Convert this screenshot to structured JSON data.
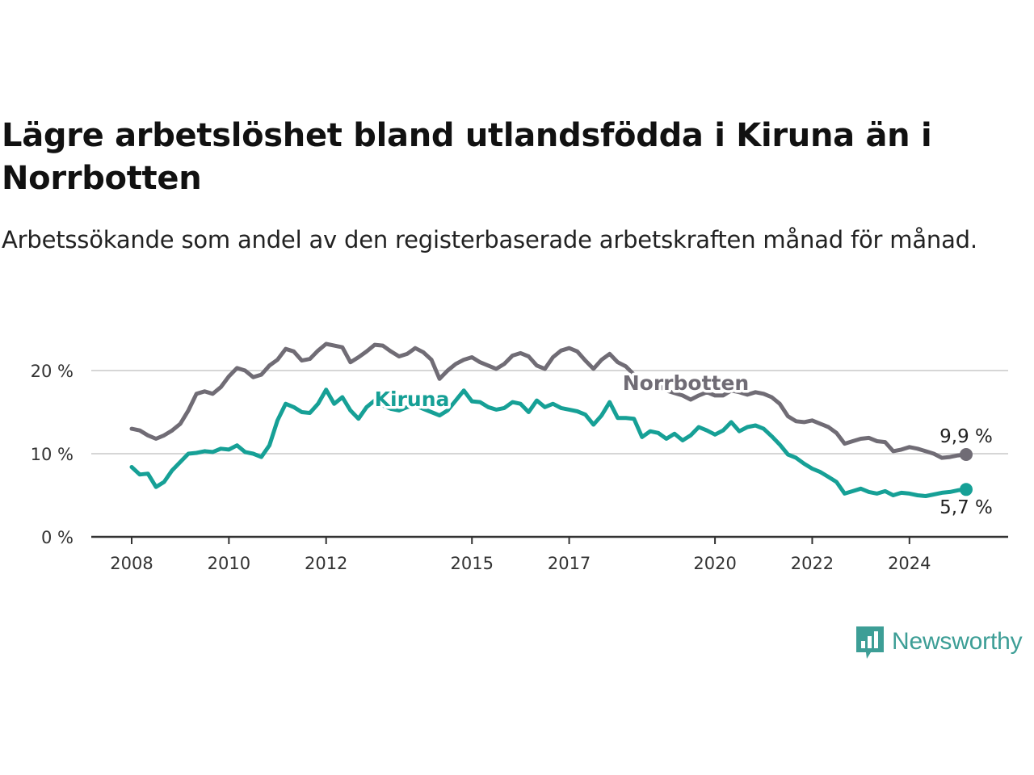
{
  "title": "Lägre arbetslöshet bland utlandsfödda i Kiruna än i Norrbotten",
  "subtitle": "Arbetssökande som andel av den registerbaserade arbetskraften månad för månad.",
  "brand": {
    "name": "Newsworthy",
    "icon": "bar-chart-speech-icon",
    "color": "#3d9e96"
  },
  "chart_data": {
    "type": "line",
    "title": "Lägre arbetslöshet bland utlandsfödda i Kiruna än i Norrbotten",
    "subtitle": "Arbetssökande som andel av den registerbaserade arbetskraften månad för månad.",
    "xlabel": "",
    "ylabel": "",
    "x_ticks": [
      "2008",
      "2010",
      "2012",
      "2015",
      "2017",
      "2020",
      "2022",
      "2024"
    ],
    "y_ticks": [
      "0 %",
      "10 %",
      "20 %"
    ],
    "ylim": [
      0,
      25
    ],
    "xlim": [
      "2008-01",
      "2025-03"
    ],
    "grid": true,
    "series": [
      {
        "name": "Norrbotten",
        "color": "#706c75",
        "end_label": "9,9 %",
        "points": [
          [
            "2008-01",
            13.0
          ],
          [
            "2008-03",
            12.8
          ],
          [
            "2008-05",
            12.2
          ],
          [
            "2008-07",
            11.8
          ],
          [
            "2008-09",
            12.2
          ],
          [
            "2008-11",
            12.8
          ],
          [
            "2009-01",
            13.6
          ],
          [
            "2009-03",
            15.2
          ],
          [
            "2009-05",
            17.2
          ],
          [
            "2009-07",
            17.5
          ],
          [
            "2009-09",
            17.2
          ],
          [
            "2009-11",
            18.0
          ],
          [
            "2010-01",
            19.3
          ],
          [
            "2010-03",
            20.3
          ],
          [
            "2010-05",
            20.0
          ],
          [
            "2010-07",
            19.2
          ],
          [
            "2010-09",
            19.5
          ],
          [
            "2010-11",
            20.6
          ],
          [
            "2011-01",
            21.3
          ],
          [
            "2011-03",
            22.6
          ],
          [
            "2011-05",
            22.3
          ],
          [
            "2011-07",
            21.2
          ],
          [
            "2011-09",
            21.4
          ],
          [
            "2011-11",
            22.4
          ],
          [
            "2012-01",
            23.2
          ],
          [
            "2012-03",
            23.0
          ],
          [
            "2012-05",
            22.8
          ],
          [
            "2012-07",
            21.0
          ],
          [
            "2012-09",
            21.6
          ],
          [
            "2012-11",
            22.3
          ],
          [
            "2013-01",
            23.1
          ],
          [
            "2013-03",
            23.0
          ],
          [
            "2013-05",
            22.3
          ],
          [
            "2013-07",
            21.7
          ],
          [
            "2013-09",
            22.0
          ],
          [
            "2013-11",
            22.7
          ],
          [
            "2014-01",
            22.2
          ],
          [
            "2014-03",
            21.3
          ],
          [
            "2014-05",
            19.0
          ],
          [
            "2014-07",
            20.0
          ],
          [
            "2014-09",
            20.8
          ],
          [
            "2014-11",
            21.3
          ],
          [
            "2015-01",
            21.6
          ],
          [
            "2015-03",
            21.0
          ],
          [
            "2015-05",
            20.6
          ],
          [
            "2015-07",
            20.2
          ],
          [
            "2015-09",
            20.8
          ],
          [
            "2015-11",
            21.8
          ],
          [
            "2016-01",
            22.1
          ],
          [
            "2016-03",
            21.7
          ],
          [
            "2016-05",
            20.6
          ],
          [
            "2016-07",
            20.2
          ],
          [
            "2016-09",
            21.6
          ],
          [
            "2016-11",
            22.4
          ],
          [
            "2017-01",
            22.7
          ],
          [
            "2017-03",
            22.3
          ],
          [
            "2017-05",
            21.2
          ],
          [
            "2017-07",
            20.2
          ],
          [
            "2017-09",
            21.3
          ],
          [
            "2017-11",
            22.0
          ],
          [
            "2018-01",
            21.0
          ],
          [
            "2018-03",
            20.5
          ],
          [
            "2018-05",
            19.5
          ],
          [
            "2018-07",
            18.4
          ],
          [
            "2018-09",
            18.2
          ],
          [
            "2018-11",
            18.2
          ],
          [
            "2019-01",
            17.6
          ],
          [
            "2019-03",
            17.3
          ],
          [
            "2019-05",
            17.0
          ],
          [
            "2019-07",
            16.5
          ],
          [
            "2019-09",
            17.0
          ],
          [
            "2019-11",
            17.4
          ],
          [
            "2020-01",
            17.0
          ],
          [
            "2020-03",
            17.0
          ],
          [
            "2020-05",
            17.6
          ],
          [
            "2020-07",
            17.4
          ],
          [
            "2020-09",
            17.1
          ],
          [
            "2020-11",
            17.4
          ],
          [
            "2021-01",
            17.2
          ],
          [
            "2021-03",
            16.8
          ],
          [
            "2021-05",
            16.0
          ],
          [
            "2021-07",
            14.5
          ],
          [
            "2021-09",
            13.9
          ],
          [
            "2021-11",
            13.8
          ],
          [
            "2022-01",
            14.0
          ],
          [
            "2022-03",
            13.6
          ],
          [
            "2022-05",
            13.2
          ],
          [
            "2022-07",
            12.5
          ],
          [
            "2022-09",
            11.2
          ],
          [
            "2022-11",
            11.5
          ],
          [
            "2023-01",
            11.8
          ],
          [
            "2023-03",
            11.9
          ],
          [
            "2023-05",
            11.5
          ],
          [
            "2023-07",
            11.4
          ],
          [
            "2023-09",
            10.3
          ],
          [
            "2023-11",
            10.5
          ],
          [
            "2024-01",
            10.8
          ],
          [
            "2024-03",
            10.6
          ],
          [
            "2024-05",
            10.3
          ],
          [
            "2024-07",
            10.0
          ],
          [
            "2024-09",
            9.5
          ],
          [
            "2024-11",
            9.6
          ],
          [
            "2025-01",
            9.8
          ],
          [
            "2025-03",
            9.9
          ]
        ]
      },
      {
        "name": "Kiruna",
        "color": "#16a096",
        "end_label": "5,7 %",
        "points": [
          [
            "2008-01",
            8.4
          ],
          [
            "2008-03",
            7.5
          ],
          [
            "2008-05",
            7.6
          ],
          [
            "2008-07",
            6.0
          ],
          [
            "2008-09",
            6.6
          ],
          [
            "2008-11",
            8.0
          ],
          [
            "2009-01",
            9.0
          ],
          [
            "2009-03",
            10.0
          ],
          [
            "2009-05",
            10.1
          ],
          [
            "2009-07",
            10.3
          ],
          [
            "2009-09",
            10.2
          ],
          [
            "2009-11",
            10.6
          ],
          [
            "2010-01",
            10.5
          ],
          [
            "2010-03",
            11.0
          ],
          [
            "2010-05",
            10.2
          ],
          [
            "2010-07",
            10.0
          ],
          [
            "2010-09",
            9.6
          ],
          [
            "2010-11",
            11.0
          ],
          [
            "2011-01",
            14.0
          ],
          [
            "2011-03",
            16.0
          ],
          [
            "2011-05",
            15.6
          ],
          [
            "2011-07",
            15.0
          ],
          [
            "2011-09",
            14.9
          ],
          [
            "2011-11",
            16.0
          ],
          [
            "2012-01",
            17.7
          ],
          [
            "2012-03",
            16.0
          ],
          [
            "2012-05",
            16.8
          ],
          [
            "2012-07",
            15.2
          ],
          [
            "2012-09",
            14.2
          ],
          [
            "2012-11",
            15.6
          ],
          [
            "2013-01",
            16.4
          ],
          [
            "2013-03",
            15.8
          ],
          [
            "2013-05",
            15.4
          ],
          [
            "2013-07",
            15.2
          ],
          [
            "2013-09",
            15.6
          ],
          [
            "2013-11",
            15.8
          ],
          [
            "2014-01",
            15.4
          ],
          [
            "2014-03",
            15.0
          ],
          [
            "2014-05",
            14.6
          ],
          [
            "2014-07",
            15.2
          ],
          [
            "2014-09",
            16.4
          ],
          [
            "2014-11",
            17.6
          ],
          [
            "2015-01",
            16.3
          ],
          [
            "2015-03",
            16.2
          ],
          [
            "2015-05",
            15.6
          ],
          [
            "2015-07",
            15.3
          ],
          [
            "2015-09",
            15.5
          ],
          [
            "2015-11",
            16.2
          ],
          [
            "2016-01",
            16.0
          ],
          [
            "2016-03",
            15.0
          ],
          [
            "2016-05",
            16.4
          ],
          [
            "2016-07",
            15.6
          ],
          [
            "2016-09",
            16.0
          ],
          [
            "2016-11",
            15.5
          ],
          [
            "2017-01",
            15.3
          ],
          [
            "2017-03",
            15.1
          ],
          [
            "2017-05",
            14.7
          ],
          [
            "2017-07",
            13.5
          ],
          [
            "2017-09",
            14.6
          ],
          [
            "2017-11",
            16.2
          ],
          [
            "2018-01",
            14.3
          ],
          [
            "2018-03",
            14.3
          ],
          [
            "2018-05",
            14.2
          ],
          [
            "2018-07",
            12.0
          ],
          [
            "2018-09",
            12.7
          ],
          [
            "2018-11",
            12.5
          ],
          [
            "2019-01",
            11.8
          ],
          [
            "2019-03",
            12.4
          ],
          [
            "2019-05",
            11.6
          ],
          [
            "2019-07",
            12.2
          ],
          [
            "2019-09",
            13.2
          ],
          [
            "2019-11",
            12.8
          ],
          [
            "2020-01",
            12.3
          ],
          [
            "2020-03",
            12.8
          ],
          [
            "2020-05",
            13.8
          ],
          [
            "2020-07",
            12.7
          ],
          [
            "2020-09",
            13.2
          ],
          [
            "2020-11",
            13.4
          ],
          [
            "2021-01",
            13.0
          ],
          [
            "2021-03",
            12.1
          ],
          [
            "2021-05",
            11.1
          ],
          [
            "2021-07",
            9.9
          ],
          [
            "2021-09",
            9.5
          ],
          [
            "2021-11",
            8.8
          ],
          [
            "2022-01",
            8.2
          ],
          [
            "2022-03",
            7.8
          ],
          [
            "2022-05",
            7.2
          ],
          [
            "2022-07",
            6.6
          ],
          [
            "2022-09",
            5.2
          ],
          [
            "2022-11",
            5.5
          ],
          [
            "2023-01",
            5.8
          ],
          [
            "2023-03",
            5.4
          ],
          [
            "2023-05",
            5.2
          ],
          [
            "2023-07",
            5.5
          ],
          [
            "2023-09",
            5.0
          ],
          [
            "2023-11",
            5.3
          ],
          [
            "2024-01",
            5.2
          ],
          [
            "2024-03",
            5.0
          ],
          [
            "2024-05",
            4.9
          ],
          [
            "2024-07",
            5.1
          ],
          [
            "2024-09",
            5.3
          ],
          [
            "2024-11",
            5.4
          ],
          [
            "2025-01",
            5.6
          ],
          [
            "2025-03",
            5.7
          ]
        ]
      }
    ]
  }
}
